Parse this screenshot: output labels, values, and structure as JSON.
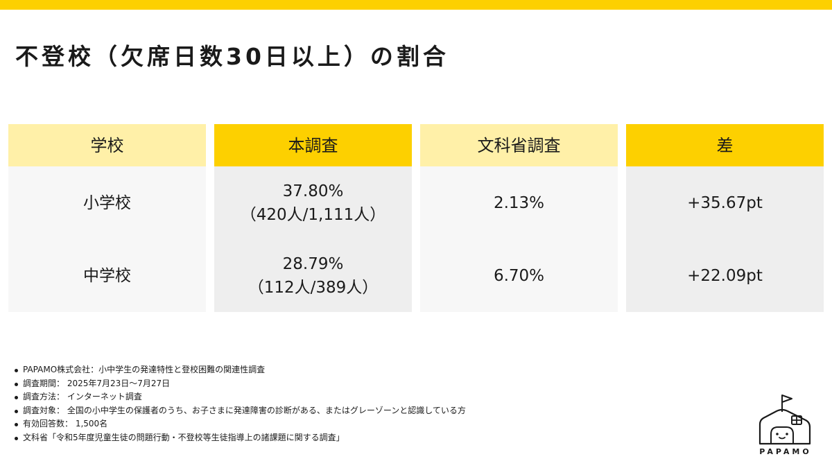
{
  "title": "不登校（欠席日数30日以上）の割合",
  "table": {
    "headers": [
      "学校",
      "本調査",
      "文科省調査",
      "差"
    ],
    "rows": [
      {
        "school": "小学校",
        "survey_pct": "37.80%",
        "survey_count": "（420人/1,111人）",
        "mext_pct": "2.13%",
        "diff": "+35.67pt"
      },
      {
        "school": "中学校",
        "survey_pct": "28.79%",
        "survey_count": "（112人/389人）",
        "mext_pct": "6.70%",
        "diff": "+22.09pt"
      }
    ]
  },
  "notes": [
    "PAPAMO株式会社：小中学生の発達特性と登校困難の関連性調査",
    "調査期間： 2025年7月23日～7月27日",
    "調査方法： インターネット調査",
    "調査対象： 全国の小中学生の保護者のうち、お子さまに発達障害の診断がある、またはグレーゾーンと認識している方",
    "有効回答数： 1,500名",
    "文科省「令和5年度児童生徒の問題行動・不登校等生徒指導上の諸課題に関する調査」"
  ],
  "logo": {
    "text": "PAPAMO",
    "icon": "house-with-flag-icon"
  },
  "colors": {
    "accent": "#fdd000",
    "accent_light": "#fff0a8",
    "cell_light": "#f7f7f7",
    "cell_grey": "#eeeeee"
  }
}
